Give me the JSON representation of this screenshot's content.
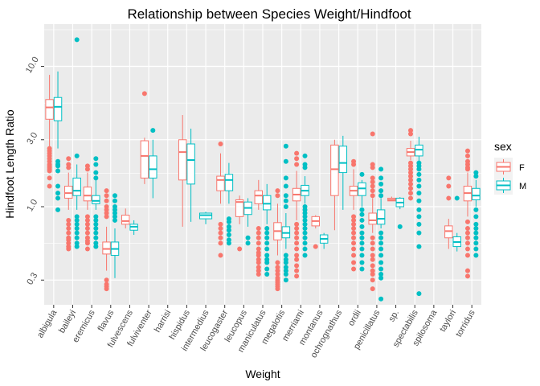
{
  "chart_data": {
    "type": "boxplot",
    "title": "Relationship between Species Weight/Hindfoot",
    "xlabel": "Weight",
    "ylabel": "Hindfoot Length Ratio",
    "y_scale": "log10",
    "ylim": [
      0.2,
      20
    ],
    "y_ticks": [
      0.3,
      1.0,
      3.0,
      10.0
    ],
    "y_tick_labels": [
      "0.3",
      "1.0",
      "3.0",
      "10.0"
    ],
    "grid": true,
    "legend": {
      "title": "sex",
      "position": "right",
      "entries": [
        "F",
        "M"
      ]
    },
    "colors": {
      "F": "#F8766D",
      "M": "#00BFC4",
      "panel": "#EBEBEB",
      "grid": "#FFFFFF"
    },
    "categories": [
      "albigula",
      "baileyi",
      "eremicus",
      "flavus",
      "fulvescens",
      "fulviventer",
      "harrisi",
      "hispidus",
      "intermedius",
      "leucogaster",
      "leucopus",
      "maniculatus",
      "megalotis",
      "merriami",
      "montanus",
      "ochrognathus",
      "ordii",
      "penicillatus",
      "sp.",
      "spectabilis",
      "spilosoma",
      "taylori",
      "torridus"
    ],
    "series": [
      {
        "name": "F",
        "boxes": [
          {
            "category": "albigula",
            "min": 2.1,
            "q1": 4.2,
            "median": 5.1,
            "q3": 5.8,
            "max": 8.7,
            "outliers": [
              2.6,
              2.5,
              2.4,
              2.3,
              2.2,
              2.1,
              2.0,
              1.95,
              1.9,
              1.85,
              1.8,
              1.6,
              1.4
            ]
          },
          {
            "category": "baileyi",
            "min": 0.95,
            "q1": 1.15,
            "median": 1.25,
            "q3": 1.4,
            "max": 1.75,
            "outliers": [
              2.2,
              2.0,
              1.9,
              0.8,
              0.75,
              0.7,
              0.65,
              0.6,
              0.58,
              0.55,
              0.52,
              0.5
            ]
          },
          {
            "category": "eremicus",
            "min": 0.95,
            "q1": 1.1,
            "median": 1.2,
            "q3": 1.38,
            "max": 1.75,
            "outliers": [
              1.95,
              1.85,
              0.85,
              0.8,
              0.75,
              0.7,
              0.65,
              0.6,
              0.57,
              0.55,
              0.5
            ]
          },
          {
            "category": "flavus",
            "min": 0.35,
            "q1": 0.46,
            "median": 0.5,
            "q3": 0.56,
            "max": 0.72,
            "outliers": [
              1.3,
              1.2,
              1.1,
              1.0,
              0.95,
              0.9,
              0.85,
              0.3,
              0.28,
              0.27,
              0.26
            ]
          },
          {
            "category": "fulvescens",
            "min": 0.7,
            "q1": 0.75,
            "median": 0.79,
            "q3": 0.87,
            "max": 0.97,
            "outliers": []
          },
          {
            "category": "fulviventer",
            "min": 1.45,
            "q1": 1.6,
            "median": 2.3,
            "q3": 2.95,
            "max": 3.1,
            "outliers": [
              6.4
            ]
          },
          {
            "category": "hispidus",
            "min": 0.72,
            "q1": 1.55,
            "median": 2.45,
            "q3": 3.0,
            "max": 4.5,
            "outliers": []
          },
          {
            "category": "leucogaster",
            "min": 1.05,
            "q1": 1.3,
            "median": 1.55,
            "q3": 1.65,
            "max": 2.4,
            "outliers": [
              2.8,
              0.75,
              0.7,
              0.65,
              0.6,
              0.55,
              0.45
            ]
          },
          {
            "category": "leucopus",
            "min": 0.75,
            "q1": 0.85,
            "median": 1.08,
            "q3": 1.12,
            "max": 1.2,
            "outliers": [
              0.5
            ]
          },
          {
            "category": "maniculatus",
            "min": 0.95,
            "q1": 1.05,
            "median": 1.2,
            "q3": 1.3,
            "max": 1.55,
            "outliers": [
              0.7,
              0.65,
              0.6,
              0.55,
              0.5,
              0.47,
              0.45,
              0.42,
              0.4,
              0.37,
              0.35,
              0.33
            ]
          },
          {
            "category": "megalotis",
            "min": 0.45,
            "q1": 0.58,
            "median": 0.67,
            "q3": 0.77,
            "max": 1.05,
            "outliers": [
              1.3,
              1.2,
              0.4,
              0.37,
              0.35,
              0.33,
              0.31,
              0.3,
              0.29,
              0.28,
              0.27,
              0.26
            ]
          },
          {
            "category": "merriami",
            "min": 0.8,
            "q1": 1.1,
            "median": 1.22,
            "q3": 1.35,
            "max": 1.8,
            "outliers": [
              2.4,
              2.2,
              2.0,
              0.75,
              0.7,
              0.65,
              0.6,
              0.55,
              0.5,
              0.45,
              0.42,
              0.38,
              0.35,
              0.32
            ]
          },
          {
            "category": "montanus",
            "min": 0.7,
            "q1": 0.73,
            "median": 0.79,
            "q3": 0.85,
            "max": 0.87,
            "outliers": [
              0.52
            ]
          },
          {
            "category": "ochrognathus",
            "min": 0.68,
            "q1": 1.2,
            "median": 1.85,
            "q3": 2.75,
            "max": 3.0,
            "outliers": []
          },
          {
            "category": "ordii",
            "min": 0.95,
            "q1": 1.2,
            "median": 1.3,
            "q3": 1.4,
            "max": 1.85,
            "outliers": [
              2.1,
              2.0,
              0.85,
              0.8,
              0.75,
              0.7,
              0.65,
              0.6,
              0.55,
              0.5,
              0.45,
              0.4,
              0.36
            ]
          },
          {
            "category": "penicillatus",
            "min": 0.65,
            "q1": 0.75,
            "median": 0.8,
            "q3": 0.9,
            "max": 1.15,
            "outliers": [
              3.3,
              2.0,
              1.9,
              1.6,
              1.5,
              1.4,
              1.3,
              1.2,
              0.6,
              0.55,
              0.5,
              0.45,
              0.42,
              0.38,
              0.35,
              0.33,
              0.3,
              0.26
            ]
          },
          {
            "category": "sp.",
            "min": 1.1,
            "q1": 1.1,
            "median": 1.12,
            "q3": 1.15,
            "max": 1.18,
            "outliers": []
          },
          {
            "category": "spectabilis",
            "min": 2.15,
            "q1": 2.3,
            "median": 2.45,
            "q3": 2.6,
            "max": 2.95,
            "outliers": [
              3.5,
              3.3,
              2.05,
              1.95,
              1.85,
              1.75,
              1.65,
              1.55,
              1.45,
              1.35,
              1.25,
              1.15
            ]
          },
          {
            "category": "taylori",
            "min": 0.5,
            "q1": 0.6,
            "median": 0.67,
            "q3": 0.73,
            "max": 0.82,
            "outliers": [
              1.6,
              1.4,
              1.15
            ]
          },
          {
            "category": "torridus",
            "min": 0.85,
            "q1": 1.1,
            "median": 1.25,
            "q3": 1.4,
            "max": 1.75,
            "outliers": [
              2.5,
              2.3,
              2.1,
              2.0,
              1.9,
              1.85,
              0.78,
              0.7,
              0.65,
              0.6,
              0.55,
              0.5,
              0.45,
              0.35,
              0.32
            ]
          }
        ]
      },
      {
        "name": "M",
        "boxes": [
          {
            "category": "albigula",
            "min": 2.6,
            "q1": 4.1,
            "median": 5.15,
            "q3": 6.0,
            "max": 9.2,
            "outliers": [
              2.1,
              2.0,
              1.95,
              1.8,
              1.4,
              1.25,
              1.15,
              0.95
            ]
          },
          {
            "category": "baileyi",
            "min": 0.95,
            "q1": 1.2,
            "median": 1.3,
            "q3": 1.6,
            "max": 2.0,
            "outliers": [
              15.5,
              2.3,
              0.85,
              0.8,
              0.75,
              0.7,
              0.65,
              0.6,
              0.55,
              0.52
            ]
          },
          {
            "category": "eremicus",
            "min": 0.95,
            "q1": 1.05,
            "median": 1.1,
            "q3": 1.2,
            "max": 1.55,
            "outliers": [
              2.2,
              2.0,
              1.75,
              1.6,
              0.85,
              0.8,
              0.75,
              0.7,
              0.65,
              0.6,
              0.55,
              0.52
            ]
          },
          {
            "category": "flavus",
            "min": 0.31,
            "q1": 0.45,
            "median": 0.5,
            "q3": 0.56,
            "max": 0.7,
            "outliers": [
              1.2,
              1.1,
              1.0,
              0.95,
              0.9,
              0.85,
              0.8
            ]
          },
          {
            "category": "fulvescens",
            "min": 0.63,
            "q1": 0.68,
            "median": 0.72,
            "q3": 0.75,
            "max": 0.8,
            "outliers": []
          },
          {
            "category": "fulviventer",
            "min": 1.15,
            "q1": 1.6,
            "median": 1.85,
            "q3": 2.3,
            "max": 3.0,
            "outliers": [
              3.5
            ]
          },
          {
            "category": "hispidus",
            "min": 0.78,
            "q1": 1.45,
            "median": 2.15,
            "q3": 2.8,
            "max": 3.6,
            "outliers": []
          },
          {
            "category": "intermedius",
            "min": 0.75,
            "q1": 0.82,
            "median": 0.87,
            "q3": 0.9,
            "max": 0.92,
            "outliers": []
          },
          {
            "category": "leucogaster",
            "min": 1.05,
            "q1": 1.3,
            "median": 1.55,
            "q3": 1.7,
            "max": 2.05,
            "outliers": [
              0.82,
              0.78,
              0.72,
              0.68,
              0.63,
              0.58,
              0.55
            ]
          },
          {
            "category": "leucopus",
            "min": 0.72,
            "q1": 0.88,
            "median": 0.98,
            "q3": 1.08,
            "max": 1.15,
            "outliers": [
              0.6,
              0.55
            ]
          },
          {
            "category": "maniculatus",
            "min": 0.75,
            "q1": 0.95,
            "median": 1.05,
            "q3": 1.2,
            "max": 1.45,
            "outliers": [
              0.7,
              0.65,
              0.6,
              0.55,
              0.5,
              0.45,
              0.42,
              0.4,
              0.36,
              0.33
            ]
          },
          {
            "category": "megalotis",
            "min": 0.5,
            "q1": 0.6,
            "median": 0.65,
            "q3": 0.72,
            "max": 0.9,
            "outliers": [
              2.7,
              2.1,
              1.6,
              1.4,
              1.2,
              1.1,
              1.0,
              0.45,
              0.42,
              0.4,
              0.37,
              0.35,
              0.33,
              0.3
            ]
          },
          {
            "category": "merriami",
            "min": 1.05,
            "q1": 1.2,
            "median": 1.3,
            "q3": 1.42,
            "max": 1.65,
            "outliers": [
              2.3,
              2.0,
              1.9,
              1.0,
              0.95,
              0.9,
              0.85,
              0.8,
              0.75,
              0.7,
              0.65,
              0.6,
              0.55,
              0.5,
              0.45
            ]
          },
          {
            "category": "montanus",
            "min": 0.5,
            "q1": 0.55,
            "median": 0.59,
            "q3": 0.63,
            "max": 0.65,
            "outliers": []
          },
          {
            "category": "ochrognathus",
            "min": 0.95,
            "q1": 1.75,
            "median": 2.05,
            "q3": 2.7,
            "max": 3.2,
            "outliers": []
          },
          {
            "category": "ordii",
            "min": 1.0,
            "q1": 1.2,
            "median": 1.35,
            "q3": 1.48,
            "max": 1.55,
            "outliers": [
              1.7,
              0.95,
              0.88,
              0.8,
              0.72,
              0.65,
              0.6,
              0.55,
              0.5,
              0.45,
              0.4,
              0.36
            ]
          },
          {
            "category": "penicillatus",
            "min": 0.7,
            "q1": 0.75,
            "median": 0.82,
            "q3": 0.95,
            "max": 1.15,
            "outliers": [
              1.85,
              1.6,
              1.45,
              1.3,
              1.2,
              0.65,
              0.6,
              0.55,
              0.5,
              0.45,
              0.4,
              0.36,
              0.33,
              0.31,
              0.22
            ]
          },
          {
            "category": "sp.",
            "min": 0.96,
            "q1": 1.0,
            "median": 1.07,
            "q3": 1.15,
            "max": 1.17,
            "outliers": [
              0.72
            ]
          },
          {
            "category": "spectabilis",
            "min": 2.1,
            "q1": 2.3,
            "median": 2.55,
            "q3": 2.75,
            "max": 3.15,
            "outliers": [
              2.05,
              1.95,
              1.85,
              1.7,
              1.55,
              1.4,
              1.25,
              1.1,
              0.95,
              0.85,
              0.75,
              0.65,
              0.52,
              0.24
            ]
          },
          {
            "category": "taylori",
            "min": 0.48,
            "q1": 0.52,
            "median": 0.56,
            "q3": 0.61,
            "max": 0.65,
            "outliers": [
              1.15
            ]
          },
          {
            "category": "torridus",
            "min": 1.0,
            "q1": 1.12,
            "median": 1.2,
            "q3": 1.35,
            "max": 1.55,
            "outliers": [
              1.75,
              1.65,
              0.95,
              0.85,
              0.75,
              0.7,
              0.65,
              0.6,
              0.55,
              0.5,
              0.45
            ]
          }
        ]
      }
    ]
  }
}
